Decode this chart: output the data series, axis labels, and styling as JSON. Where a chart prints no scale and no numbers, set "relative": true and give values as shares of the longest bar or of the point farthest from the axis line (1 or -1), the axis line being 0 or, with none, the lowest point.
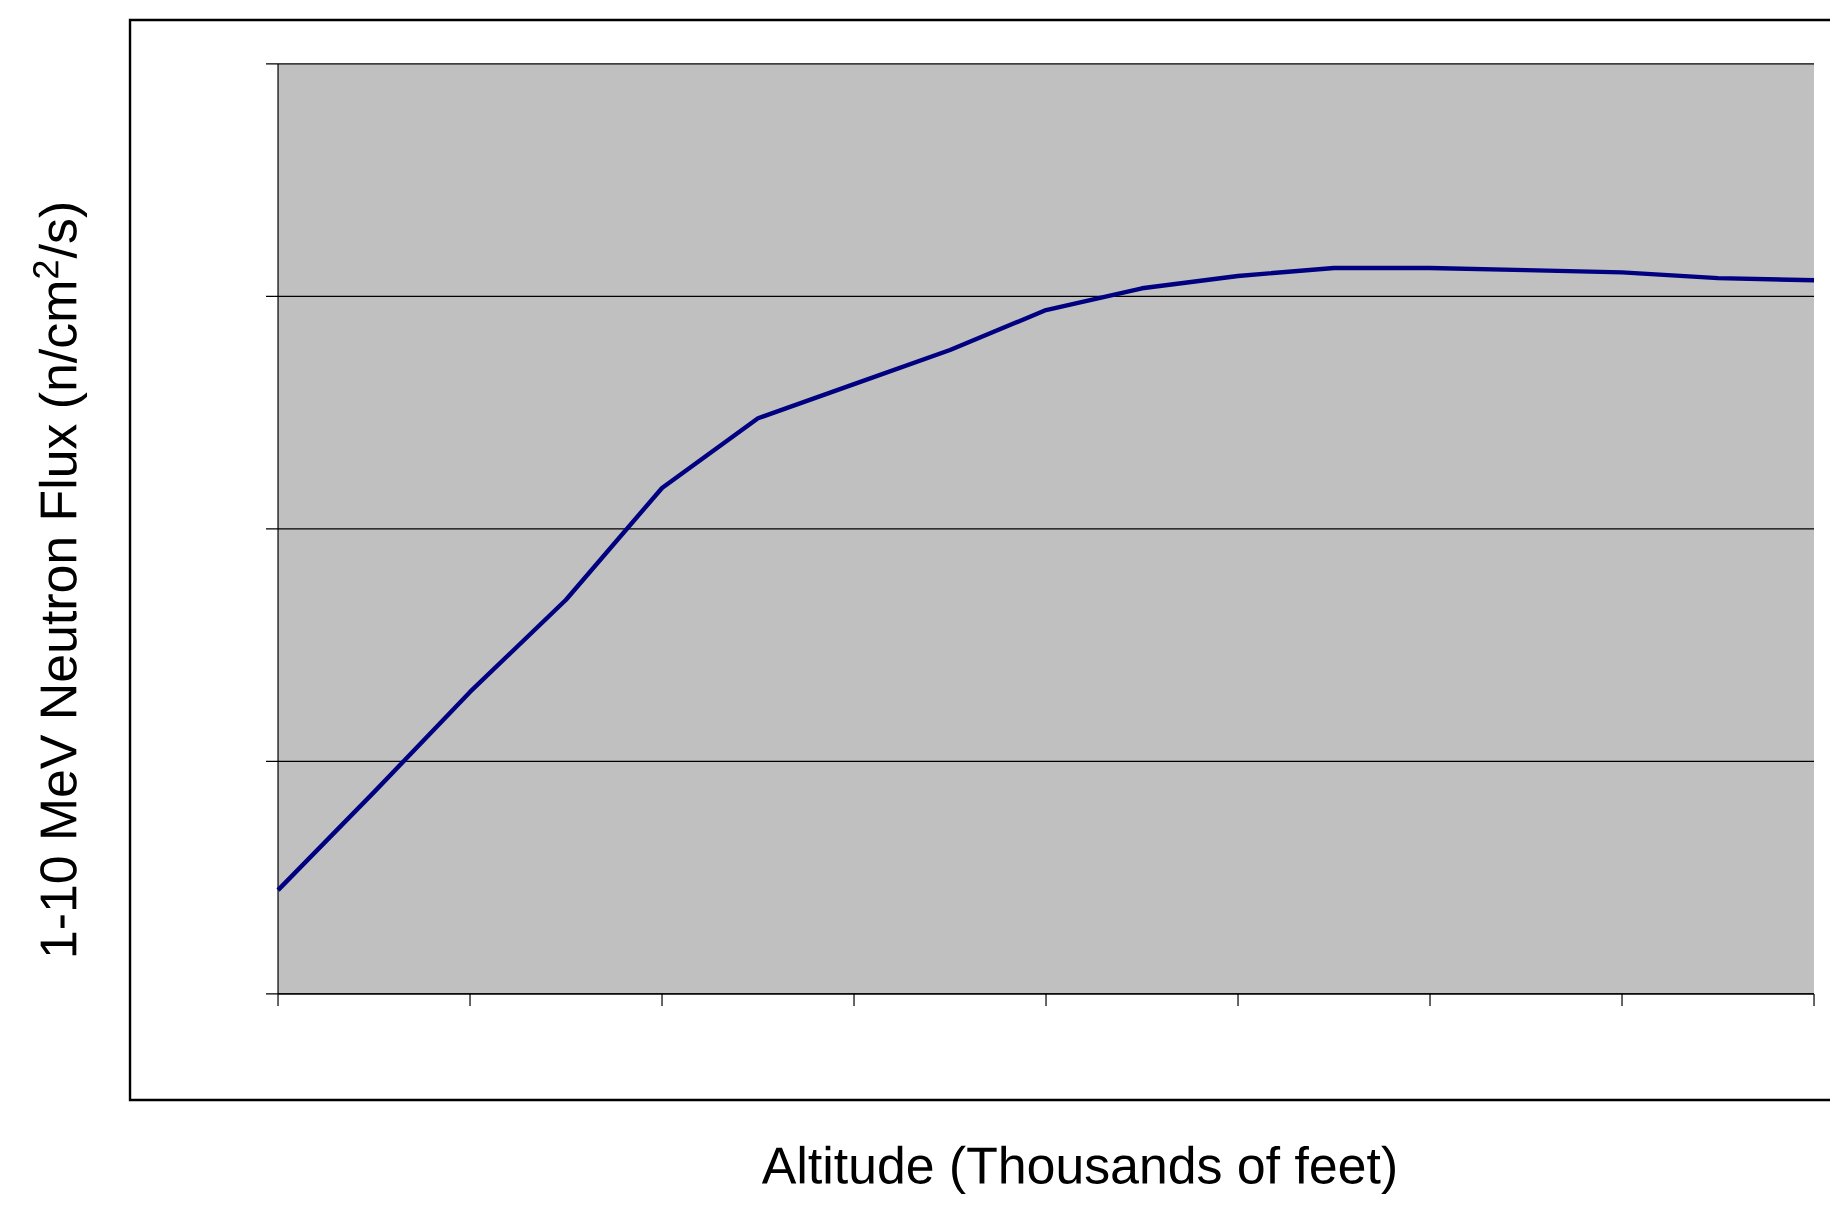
{
  "chart_data": {
    "type": "line",
    "relative": true,
    "xlabel": "Altitude (Thousands of feet)",
    "ylabel": "1-10 MeV Neutron Flux (n/cm$^{2}$/s)",
    "grid": "y",
    "marker": "none",
    "line_style": "solid",
    "categories": [
      null,
      null,
      null,
      null,
      null,
      null,
      null,
      null,
      null,
      null,
      null,
      null,
      null,
      null,
      null,
      null,
      null
    ],
    "series": [
      {
        "color": "#000080",
        "values": [
          0.143,
          0.278,
          0.416,
          0.543,
          0.697,
          0.793,
          0.84,
          0.887,
          0.942,
          0.972,
          0.989,
          1,
          1,
          0.997,
          0.994,
          0.986,
          0.983
        ]
      }
    ]
  }
}
